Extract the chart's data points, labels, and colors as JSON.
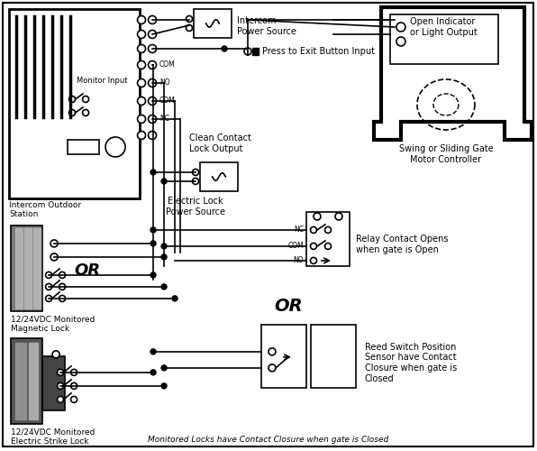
{
  "bg_color": "#ffffff",
  "lw": 1.2,
  "fig_w": 5.96,
  "fig_h": 5.0,
  "labels": {
    "intercom_ps": "Intercom\nPower Source",
    "press_exit": "Press to Exit Button Input",
    "clean_contact": "Clean Contact\nLock Output",
    "electric_lock_ps": "Electric Lock\nPower Source",
    "intercom_outdoor": "Intercom Outdoor\nStation",
    "monitor_input": "Monitor Input",
    "magnetic_lock": "12/24VDC Monitored\nMagnetic Lock",
    "electric_strike": "12/24VDC Monitored\nElectric Strike Lock",
    "gate_motor": "Swing or Sliding Gate\nMotor Controller",
    "open_indicator": "Open Indicator\nor Light Output",
    "relay_contact": "Relay Contact Opens\nwhen gate is Open",
    "reed_switch": "Reed Switch Position\nSensor have Contact\nClosure when gate is\nClosed",
    "or1": "OR",
    "or2": "OR",
    "footer": "Monitored Locks have Contact Closure when gate is Closed",
    "com_top": "COM",
    "no_label": "NO",
    "com_mid": "COM",
    "nc_label": "NC",
    "nc2": "NC",
    "com3": "COM",
    "no2": "NO"
  }
}
